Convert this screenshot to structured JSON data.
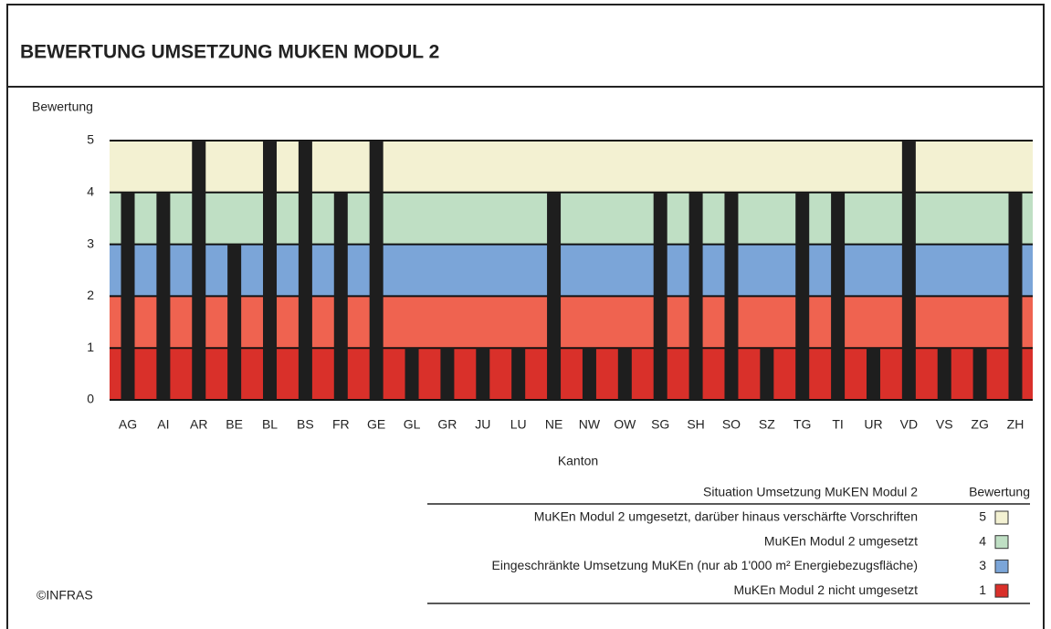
{
  "chart_data": {
    "type": "bar",
    "title": "BEWERTUNG UMSETZUNG MUKEN MODUL 2",
    "y_label": "Bewertung",
    "x_label": "Kanton",
    "categories": [
      "AG",
      "AI",
      "AR",
      "BE",
      "BL",
      "BS",
      "FR",
      "GE",
      "GL",
      "GR",
      "JU",
      "LU",
      "NE",
      "NW",
      "OW",
      "SG",
      "SH",
      "SO",
      "SZ",
      "TG",
      "TI",
      "UR",
      "VD",
      "VS",
      "ZG",
      "ZH"
    ],
    "values": [
      4,
      4,
      5,
      3,
      5,
      5,
      4,
      5,
      1,
      1,
      1,
      1,
      4,
      1,
      1,
      4,
      4,
      4,
      1,
      4,
      4,
      1,
      5,
      1,
      1,
      4
    ],
    "color": "#1e1e1e",
    "ylim": [
      0,
      5
    ],
    "yticks": [
      0,
      1,
      2,
      3,
      4,
      5
    ],
    "grid": true,
    "bands": [
      {
        "value": 1,
        "color": "#d9302a"
      },
      {
        "value": 2,
        "color": "#ef6350"
      },
      {
        "value": 3,
        "color": "#7ba5d8"
      },
      {
        "value": 4,
        "color": "#bfdfc4"
      },
      {
        "value": 5,
        "color": "#f3f1d2"
      }
    ],
    "legend": {
      "title": "Situation Umsetzung MuKEN Modul 2",
      "value_title": "Bewertung",
      "items": [
        {
          "label": "MuKEn Modul 2 umgesetzt, darüber hinaus verschärfte Vorschriften",
          "value": 5,
          "color": "#f3f1d2"
        },
        {
          "label": "MuKEn Modul 2 umgesetzt",
          "value": 4,
          "color": "#bfdfc4"
        },
        {
          "label": "Eingeschränkte Umsetzung MuKEn (nur ab 1'000 m² Energiebezugsfläche)",
          "value": 3,
          "color": "#7ba5d8"
        },
        {
          "label": "MuKEn Modul 2 nicht umgesetzt",
          "value": 1,
          "color": "#d9302a"
        }
      ]
    },
    "source": "©INFRAS"
  }
}
